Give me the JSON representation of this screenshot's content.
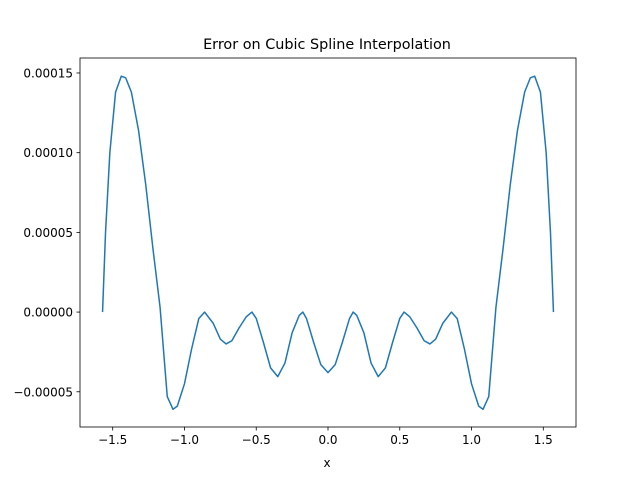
{
  "chart_data": {
    "type": "line",
    "title": "Error on Cubic Spline Interpolation",
    "x_label": "x",
    "color": "#1f77b4",
    "x": [
      -1.5708,
      -1.55,
      -1.52,
      -1.48,
      -1.44,
      -1.41,
      -1.37,
      -1.32,
      -1.27,
      -1.22,
      -1.17,
      -1.12,
      -1.08,
      -1.05,
      -1.0,
      -0.95,
      -0.9,
      -0.86,
      -0.8,
      -0.75,
      -0.71,
      -0.67,
      -0.62,
      -0.57,
      -0.53,
      -0.5,
      -0.45,
      -0.4,
      -0.35,
      -0.3,
      -0.25,
      -0.2,
      -0.175,
      -0.15,
      -0.1,
      -0.05,
      0,
      0.05,
      0.1,
      0.15,
      0.175,
      0.2,
      0.25,
      0.3,
      0.35,
      0.4,
      0.45,
      0.5,
      0.53,
      0.57,
      0.62,
      0.67,
      0.71,
      0.75,
      0.8,
      0.86,
      0.9,
      0.95,
      1.0,
      1.05,
      1.08,
      1.12,
      1.17,
      1.22,
      1.27,
      1.32,
      1.37,
      1.41,
      1.44,
      1.48,
      1.52,
      1.55,
      1.5708
    ],
    "values": [
      0,
      5e-05,
      0.0001,
      0.000138,
      0.000148,
      0.000147,
      0.000138,
      0.000114,
      8e-05,
      4e-05,
      3e-06,
      -5.3e-05,
      -6.1e-05,
      -5.9e-05,
      -4.5e-05,
      -2.3e-05,
      -4e-06,
      0,
      -7e-06,
      -1.7e-05,
      -2e-05,
      -1.8e-05,
      -1e-05,
      -3e-06,
      0,
      -4e-06,
      -1.9e-05,
      -3.5e-05,
      -4.05e-05,
      -3.2e-05,
      -1.3e-05,
      -2e-06,
      0,
      -4e-06,
      -1.9e-05,
      -3.3e-05,
      -3.8e-05,
      -3.3e-05,
      -1.9e-05,
      -4e-06,
      0,
      -2e-06,
      -1.3e-05,
      -3.2e-05,
      -4.05e-05,
      -3.5e-05,
      -1.9e-05,
      -4e-06,
      0,
      -3e-06,
      -1e-05,
      -1.8e-05,
      -2e-05,
      -1.7e-05,
      -7e-06,
      0,
      -4e-06,
      -2.3e-05,
      -4.5e-05,
      -5.9e-05,
      -6.1e-05,
      -5.3e-05,
      3e-06,
      4e-05,
      8e-05,
      0.000114,
      0.000138,
      0.000147,
      0.000148,
      0.000138,
      0.0001,
      5e-05,
      0
    ],
    "xlim": [
      -1.7279,
      1.7279
    ],
    "xticks": [
      {
        "value": -1.5,
        "label": "−1.5"
      },
      {
        "value": -1.0,
        "label": "−1.0"
      },
      {
        "value": -0.5,
        "label": "−0.5"
      },
      {
        "value": 0,
        "label": "0.0"
      },
      0.5,
      {
        "value": 1.0,
        "label": "1.0"
      },
      1.5
    ],
    "ylim": [
      -7.21e-05,
      0.0001594
    ],
    "yticks": [
      {
        "value": -5e-05,
        "label": "−0.00005"
      },
      {
        "value": 0,
        "label": "0.00000"
      },
      {
        "value": 5e-05,
        "label": "0.00005"
      },
      {
        "value": 0.0001,
        "label": "0.00010"
      },
      {
        "value": 0.00015,
        "label": "0.00015"
      }
    ]
  }
}
